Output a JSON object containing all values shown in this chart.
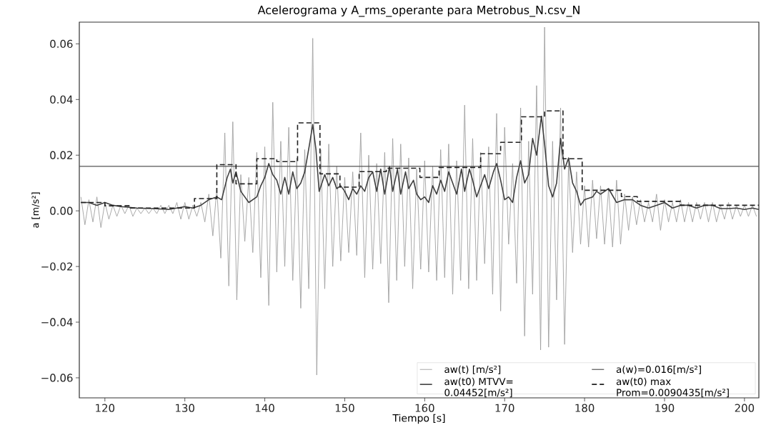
{
  "chart_data": {
    "type": "line",
    "title": "Acelerograma y A_rms_operante para Metrobus_N.csv_N",
    "xlabel": "Tiempo [s]",
    "ylabel": "a [m/s²]",
    "xlim": [
      116.8,
      201.8
    ],
    "ylim": [
      -0.0672,
      0.0678
    ],
    "xticks": [
      120,
      130,
      140,
      150,
      160,
      170,
      180,
      190,
      200
    ],
    "yticks": [
      {
        "value": -0.06,
        "label": "−0.06"
      },
      {
        "value": -0.04,
        "label": "−0.04"
      },
      {
        "value": -0.02,
        "label": "−0.02"
      },
      {
        "value": 0,
        "label": "0.00"
      },
      {
        "value": 0.02,
        "label": "0.02"
      },
      {
        "value": 0.04,
        "label": "0.04"
      },
      {
        "value": 0.06,
        "label": "0.06"
      }
    ],
    "legend": "bottom right",
    "series": [
      {
        "name": "aw(t)  [m/s²]",
        "color": "#a0a0a0",
        "x": [
          117,
          117.5,
          118,
          118.5,
          119,
          119.5,
          120,
          120.5,
          121,
          121.5,
          122,
          122.5,
          123,
          123.5,
          124,
          124.5,
          125,
          125.5,
          126,
          126.5,
          127,
          127.5,
          128,
          128.5,
          129,
          129.5,
          130,
          130.5,
          131,
          131.5,
          132,
          132.5,
          133,
          133.5,
          134,
          134.5,
          135,
          135.5,
          136,
          136.5,
          137,
          137.5,
          138,
          138.5,
          139,
          139.5,
          140,
          140.5,
          141,
          141.5,
          142,
          142.5,
          143,
          143.5,
          144,
          144.5,
          145,
          145.5,
          146,
          146.5,
          147,
          147.5,
          148,
          148.5,
          149,
          149.5,
          150,
          150.5,
          151,
          151.5,
          152,
          152.5,
          153,
          153.5,
          154,
          154.5,
          155,
          155.5,
          156,
          156.5,
          157,
          157.5,
          158,
          158.5,
          159,
          159.5,
          160,
          160.5,
          161,
          161.5,
          162,
          162.5,
          163,
          163.5,
          164,
          164.5,
          165,
          165.5,
          166,
          166.5,
          167,
          167.5,
          168,
          168.5,
          169,
          169.5,
          170,
          170.5,
          171,
          171.5,
          172,
          172.5,
          173,
          173.5,
          174,
          174.5,
          175,
          175.5,
          176,
          176.5,
          177,
          177.5,
          178,
          178.5,
          179,
          179.5,
          180,
          180.5,
          181,
          181.5,
          182,
          182.5,
          183,
          183.5,
          184,
          184.5,
          185,
          185.5,
          186,
          186.5,
          187,
          187.5,
          188,
          188.5,
          189,
          189.5,
          190,
          190.5,
          191,
          191.5,
          192,
          192.5,
          193,
          193.5,
          194,
          194.5,
          195,
          195.5,
          196,
          196.5,
          197,
          197.5,
          198,
          198.5,
          199,
          199.5,
          200,
          200.5,
          201,
          201.5
        ],
        "values": [
          0.005,
          -0.005,
          0.004,
          -0.004,
          0.005,
          -0.006,
          0.003,
          -0.003,
          0.002,
          -0.002,
          0.002,
          -0.001,
          0.002,
          -0.002,
          0.001,
          -0.001,
          0.001,
          -0.001,
          0.001,
          -0.001,
          0.002,
          -0.001,
          0.002,
          -0.001,
          0.003,
          -0.003,
          0.003,
          -0.003,
          0.002,
          -0.002,
          0.003,
          -0.004,
          0.006,
          -0.009,
          0.008,
          -0.017,
          0.028,
          -0.027,
          0.032,
          -0.032,
          0.013,
          -0.011,
          0.012,
          -0.015,
          0.021,
          -0.024,
          0.023,
          -0.034,
          0.039,
          -0.022,
          0.025,
          -0.02,
          0.03,
          -0.025,
          0.019,
          -0.035,
          0.022,
          -0.028,
          0.062,
          -0.059,
          0.022,
          -0.028,
          0.024,
          -0.02,
          0.016,
          -0.018,
          0.012,
          -0.015,
          0.014,
          -0.016,
          0.028,
          -0.024,
          0.02,
          -0.021,
          0.017,
          -0.019,
          0.021,
          -0.033,
          0.026,
          -0.025,
          0.024,
          -0.02,
          0.019,
          -0.028,
          0.015,
          -0.021,
          0.018,
          -0.022,
          0.016,
          -0.025,
          0.022,
          -0.024,
          0.024,
          -0.03,
          0.018,
          -0.025,
          0.038,
          -0.028,
          0.026,
          -0.025,
          0.021,
          -0.019,
          0.023,
          -0.03,
          0.035,
          -0.036,
          0.03,
          -0.012,
          0.017,
          -0.026,
          0.037,
          -0.045,
          0.025,
          -0.03,
          0.045,
          -0.05,
          0.066,
          -0.049,
          0.025,
          -0.032,
          0.037,
          -0.048,
          0.018,
          -0.015,
          0.014,
          -0.012,
          0.009,
          -0.013,
          0.011,
          -0.01,
          0.009,
          -0.012,
          0.008,
          -0.013,
          0.011,
          -0.012,
          0.006,
          -0.007,
          0.005,
          -0.005,
          0.004,
          -0.004,
          0.003,
          -0.004,
          0.006,
          -0.007,
          0.004,
          -0.004,
          0.003,
          -0.004,
          0.004,
          -0.004,
          0.003,
          -0.004,
          0.003,
          -0.003,
          0.003,
          -0.004,
          0.003,
          -0.004,
          0.002,
          -0.003,
          0.003,
          -0.003,
          0.002,
          -0.002,
          0.002,
          -0.002,
          0.002,
          -0.002
        ]
      },
      {
        "name": "aw(t0) MTVV= 0.04452[m/s²]",
        "color": "#404040",
        "x": [
          117,
          118,
          119,
          120,
          121,
          122,
          124,
          126,
          128,
          130,
          131,
          132,
          133,
          134,
          134.6,
          135.3,
          135.7,
          136,
          136.4,
          137,
          138,
          139,
          139.5,
          140,
          140.5,
          141,
          141.5,
          142,
          142.5,
          143,
          143.5,
          144,
          144.5,
          145,
          145.6,
          146,
          146.4,
          146.8,
          147.5,
          148,
          148.5,
          149,
          149.5,
          150,
          150.5,
          151,
          151.5,
          152,
          152.5,
          153,
          153.5,
          154,
          154.5,
          155,
          155.6,
          156,
          156.6,
          157,
          157.6,
          158,
          158.6,
          159,
          159.5,
          160,
          160.5,
          161,
          161.5,
          162,
          162.5,
          163,
          163.5,
          164,
          164.6,
          165,
          165.6,
          166,
          166.5,
          167,
          167.5,
          168,
          168.6,
          169,
          169.5,
          170,
          170.5,
          171,
          171.5,
          172,
          172.5,
          173,
          173.5,
          174,
          174.6,
          175,
          175.5,
          176,
          176.5,
          177,
          177.5,
          178,
          178.5,
          179,
          179.5,
          180,
          181,
          181.5,
          182,
          183,
          184,
          185,
          186,
          187,
          188,
          189,
          190,
          191,
          192,
          193,
          194,
          195,
          196,
          197,
          198,
          199,
          200,
          201,
          201.8
        ],
        "values": [
          0.003,
          0.003,
          0.002,
          0.003,
          0.002,
          0.0015,
          0.001,
          0.0008,
          0.0005,
          0.0015,
          0.001,
          0.002,
          0.004,
          0.005,
          0.004,
          0.012,
          0.015,
          0.01,
          0.014,
          0.007,
          0.003,
          0.005,
          0.009,
          0.012,
          0.017,
          0.013,
          0.011,
          0.006,
          0.012,
          0.006,
          0.014,
          0.008,
          0.01,
          0.014,
          0.024,
          0.031,
          0.022,
          0.007,
          0.013,
          0.009,
          0.012,
          0.008,
          0.009,
          0.007,
          0.004,
          0.008,
          0.006,
          0.009,
          0.007,
          0.012,
          0.014,
          0.007,
          0.015,
          0.006,
          0.016,
          0.007,
          0.015,
          0.006,
          0.014,
          0.008,
          0.011,
          0.006,
          0.004,
          0.005,
          0.003,
          0.009,
          0.006,
          0.011,
          0.007,
          0.014,
          0.01,
          0.006,
          0.015,
          0.007,
          0.015,
          0.011,
          0.005,
          0.009,
          0.013,
          0.008,
          0.014,
          0.017,
          0.011,
          0.004,
          0.005,
          0.003,
          0.012,
          0.018,
          0.01,
          0.013,
          0.026,
          0.02,
          0.034,
          0.024,
          0.009,
          0.005,
          0.01,
          0.026,
          0.015,
          0.019,
          0.01,
          0.007,
          0.002,
          0.004,
          0.005,
          0.007,
          0.006,
          0.008,
          0.003,
          0.004,
          0.004,
          0.002,
          0.001,
          0.002,
          0.003,
          0.001,
          0.002,
          0.002,
          0.001,
          0.002,
          0.002,
          0.0008,
          0.0008,
          0.001,
          0.0005,
          0.001,
          0.0005
        ]
      },
      {
        "name": "aw(t0) max Prom=0.0090435[m/s²]",
        "type": "step",
        "color": "#202020",
        "line_style": "dashed",
        "x": [
          117,
          120,
          123.2,
          131.2,
          134,
          136.4,
          139,
          141.5,
          144.1,
          146.9,
          149.4,
          151.8,
          155.2,
          159.4,
          161.8,
          167,
          169.5,
          172.1,
          175,
          177.3,
          179.7,
          184.6,
          186.6,
          192,
          201.8
        ],
        "values": [
          0.003,
          0.0018,
          0.001,
          0.0044,
          0.0166,
          0.0097,
          0.0187,
          0.0177,
          0.0316,
          0.0133,
          0.0085,
          0.0141,
          0.0153,
          0.012,
          0.0156,
          0.0205,
          0.0246,
          0.0338,
          0.0359,
          0.0187,
          0.0074,
          0.0051,
          0.0034,
          0.002,
          0.002
        ]
      }
    ],
    "ref_lines": [
      {
        "axis": "y",
        "value": 0.016,
        "label": "a(w)=0.016[m/s²]",
        "color": "#555555"
      }
    ]
  }
}
